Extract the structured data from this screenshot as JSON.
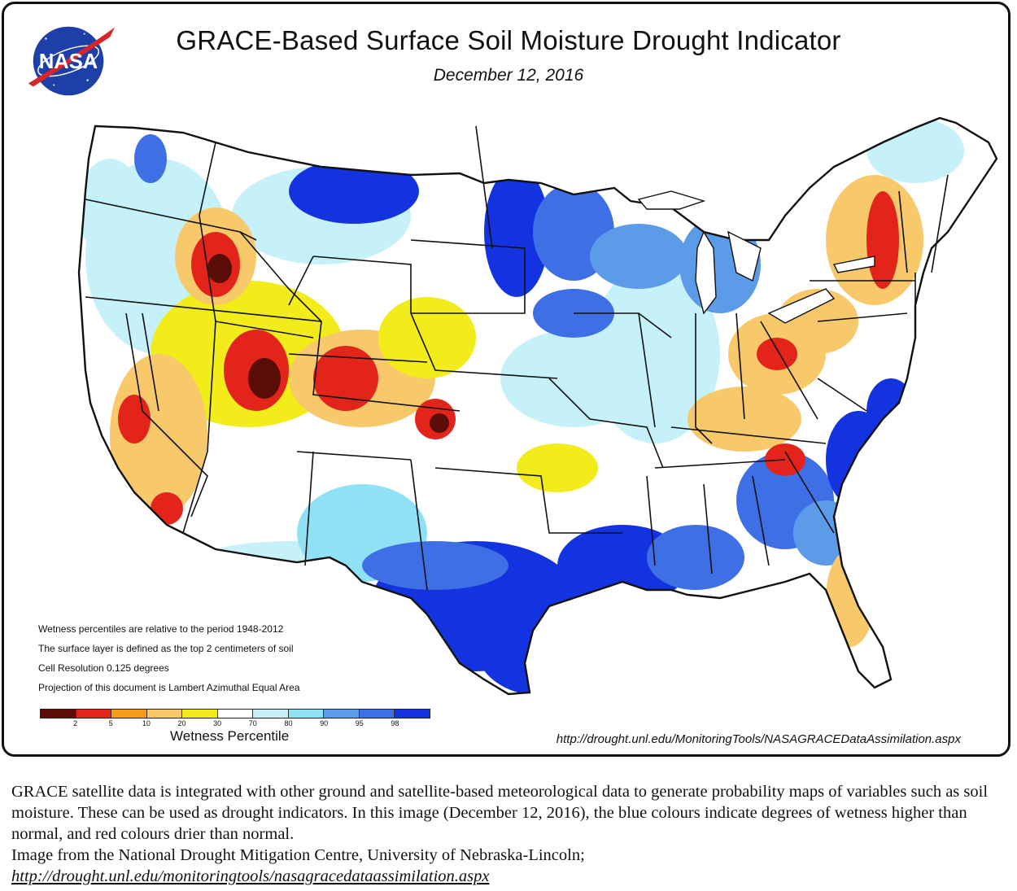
{
  "map": {
    "title": "GRACE-Based Surface Soil  Moisture Drought Indicator",
    "date": "December 12, 2016",
    "logo_text": "NASA",
    "notes": [
      "Wetness percentiles are relative to the period 1948-2012",
      "The surface layer is defined as the top 2 centimeters of soil",
      "Cell Resolution 0.125 degrees",
      "Projection of this document is Lambert Azimuthal Equal Area"
    ],
    "legend": {
      "title": "Wetness Percentile",
      "tick_labels": [
        "2",
        "5",
        "10",
        "20",
        "30",
        "70",
        "80",
        "90",
        "95",
        "98"
      ],
      "colors": [
        "#5a0d06",
        "#e3241b",
        "#f49a1d",
        "#f7c96a",
        "#f1ec1a",
        "#ffffff",
        "#c6f1f8",
        "#8fe2f6",
        "#5b9be7",
        "#3f6fe5",
        "#1433e0"
      ]
    },
    "source_url": "http://drought.unl.edu/MonitoringTools/NASAGRACEDataAssimilation.aspx",
    "colors": {
      "border": "#111111",
      "nasa_blue": "#1c3fa8",
      "nasa_red": "#d6262a"
    }
  },
  "caption": {
    "text": "GRACE satellite data is integrated with other ground and satellite-based meteorological data to generate probability maps of variables such as soil moisture.  These can be used as drought indicators.  In this image (December 12, 2016), the blue colours indicate degrees of wetness higher than normal, and red colours drier than normal.",
    "credit": "Image from the National Drought Mitigation Centre, University of Nebraska-Lincoln;",
    "link": "http://drought.unl.edu/monitoringtools/nasagracedataassimilation.aspx"
  }
}
